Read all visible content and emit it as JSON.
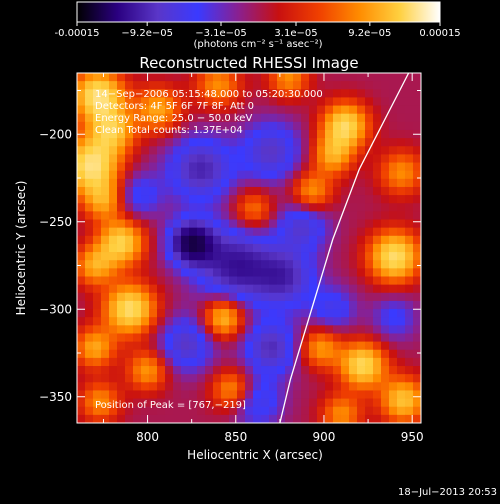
{
  "colorbar": {
    "tick_labels": [
      "-0.00015",
      "−9.2e−05",
      "−3.1e−05",
      "3.1e−05",
      "9.2e−05",
      "0.00015"
    ],
    "tick_values": [
      -0.00015,
      -9.2e-05,
      -3.1e-05,
      3.1e-05,
      9.2e-05,
      0.00015
    ],
    "range": [
      -0.00015,
      0.00015
    ],
    "unit_label": "(photons cm⁻² s⁻¹ asec⁻²)",
    "colormap": [
      "#000000",
      "#2a0080",
      "#5a36c8",
      "#3a3aff",
      "#8a2090",
      "#c81010",
      "#f04000",
      "#ff8c00",
      "#ffd040",
      "#ffffff"
    ]
  },
  "chart_data": {
    "type": "heatmap",
    "title": "Reconstructed RHESSI Image",
    "xlabel": "Heliocentric X (arcsec)",
    "ylabel": "Heliocentric Y (arcsec)",
    "xlim": [
      760,
      955
    ],
    "ylim": [
      -365,
      -165
    ],
    "x_ticks": [
      800,
      850,
      900,
      950
    ],
    "y_ticks": [
      -350,
      -300,
      -250,
      -200
    ],
    "info_lines": [
      "14−Sep−2006 05:15:48.000 to 05:20:30.000",
      "Detectors: 4F 5F 6F 7F 8F, Att 0",
      "Energy Range: 25.0 − 50.0 keV",
      "Clean    Total counts: 1.37E+04"
    ],
    "peak_label": "Position of Peak = [767,−219]",
    "peak": [
      767,
      -219
    ],
    "limb_points": [
      [
        948,
        -165
      ],
      [
        920,
        -220
      ],
      [
        905,
        -260
      ],
      [
        893,
        -300
      ],
      [
        881,
        -340
      ],
      [
        875,
        -365
      ]
    ],
    "blobs": [
      {
        "x": 772,
        "y": -178,
        "v": 1.0,
        "s": 10
      },
      {
        "x": 768,
        "y": -218,
        "v": 1.0,
        "s": 11
      },
      {
        "x": 780,
        "y": -198,
        "v": 0.7,
        "s": 9
      },
      {
        "x": 775,
        "y": -238,
        "v": 0.55,
        "s": 8
      },
      {
        "x": 806,
        "y": -186,
        "v": 0.6,
        "s": 9
      },
      {
        "x": 840,
        "y": -172,
        "v": 0.5,
        "s": 9
      },
      {
        "x": 880,
        "y": -168,
        "v": 0.5,
        "s": 8
      },
      {
        "x": 912,
        "y": -195,
        "v": 0.9,
        "s": 9
      },
      {
        "x": 905,
        "y": -212,
        "v": 0.6,
        "s": 8
      },
      {
        "x": 785,
        "y": -262,
        "v": 0.85,
        "s": 9
      },
      {
        "x": 770,
        "y": -275,
        "v": 0.6,
        "s": 8
      },
      {
        "x": 860,
        "y": -243,
        "v": 0.45,
        "s": 8
      },
      {
        "x": 893,
        "y": -233,
        "v": 0.55,
        "s": 8
      },
      {
        "x": 790,
        "y": -300,
        "v": 0.95,
        "s": 10
      },
      {
        "x": 770,
        "y": -322,
        "v": 0.6,
        "s": 8
      },
      {
        "x": 843,
        "y": -305,
        "v": 0.75,
        "s": 8
      },
      {
        "x": 800,
        "y": -335,
        "v": 0.55,
        "s": 8
      },
      {
        "x": 848,
        "y": -346,
        "v": 0.55,
        "s": 8
      },
      {
        "x": 773,
        "y": -353,
        "v": 0.5,
        "s": 8
      },
      {
        "x": 898,
        "y": -322,
        "v": 0.55,
        "s": 8
      },
      {
        "x": 922,
        "y": -332,
        "v": 0.9,
        "s": 9
      },
      {
        "x": 940,
        "y": -270,
        "v": 0.95,
        "s": 10
      },
      {
        "x": 944,
        "y": -222,
        "v": 0.5,
        "s": 9
      },
      {
        "x": 945,
        "y": -352,
        "v": 0.75,
        "s": 9
      },
      {
        "x": 910,
        "y": -360,
        "v": 0.5,
        "s": 8
      },
      {
        "x": 825,
        "y": -262,
        "v": -1.0,
        "s": 9
      },
      {
        "x": 850,
        "y": -275,
        "v": -0.7,
        "s": 15
      },
      {
        "x": 830,
        "y": -220,
        "v": -0.6,
        "s": 13
      },
      {
        "x": 870,
        "y": -210,
        "v": -0.5,
        "s": 12
      },
      {
        "x": 878,
        "y": -282,
        "v": -0.55,
        "s": 12
      },
      {
        "x": 870,
        "y": -322,
        "v": -0.55,
        "s": 11
      },
      {
        "x": 822,
        "y": -320,
        "v": -0.5,
        "s": 11
      },
      {
        "x": 888,
        "y": -252,
        "v": -0.45,
        "s": 10
      },
      {
        "x": 862,
        "y": -353,
        "v": -0.4,
        "s": 10
      },
      {
        "x": 795,
        "y": -235,
        "v": -0.35,
        "s": 9
      },
      {
        "x": 905,
        "y": -300,
        "v": -0.35,
        "s": 9
      },
      {
        "x": 940,
        "y": -305,
        "v": -0.3,
        "s": 9
      }
    ]
  },
  "timestamp": "18−Jul−2013 20:53"
}
